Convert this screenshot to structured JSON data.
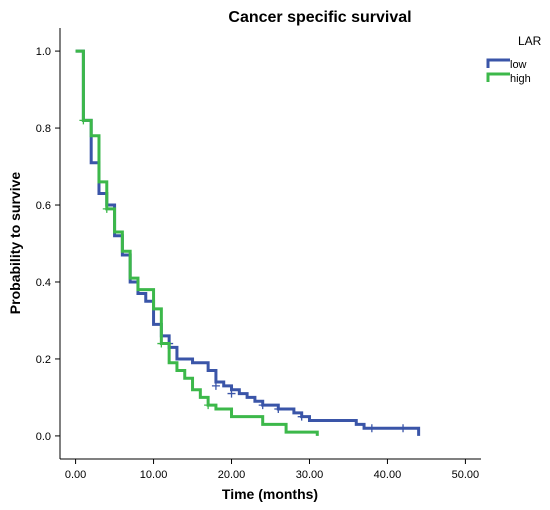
{
  "chart_data": {
    "type": "line",
    "subtype": "kaplan-meier step",
    "title": "Cancer specific survival",
    "xlabel": "Time (months)",
    "ylabel": "Probability to survive",
    "xlim": [
      -2,
      52
    ],
    "ylim": [
      -0.06,
      1.06
    ],
    "xticks": [
      0,
      10,
      20,
      30,
      40,
      50
    ],
    "xtick_labels": [
      "0.00",
      "10.00",
      "20.00",
      "30.00",
      "40.00",
      "50.00"
    ],
    "yticks": [
      0.0,
      0.2,
      0.4,
      0.6,
      0.8,
      1.0
    ],
    "ytick_labels": [
      "0.0",
      "0.2",
      "0.4",
      "0.6",
      "0.8",
      "1.0"
    ],
    "grid": false,
    "legend": {
      "title": "LAR",
      "position": "right"
    },
    "series": [
      {
        "name": "low",
        "color": "#3a55a8",
        "steps": [
          [
            0.0,
            1.0
          ],
          [
            1.0,
            0.82
          ],
          [
            2.0,
            0.71
          ],
          [
            3.0,
            0.63
          ],
          [
            4.0,
            0.6
          ],
          [
            5.0,
            0.52
          ],
          [
            6.0,
            0.47
          ],
          [
            7.0,
            0.4
          ],
          [
            8.0,
            0.37
          ],
          [
            9.0,
            0.35
          ],
          [
            10.0,
            0.29
          ],
          [
            11.0,
            0.26
          ],
          [
            12.0,
            0.23
          ],
          [
            13.0,
            0.2
          ],
          [
            15.0,
            0.19
          ],
          [
            17.0,
            0.17
          ],
          [
            18.0,
            0.14
          ],
          [
            19.0,
            0.13
          ],
          [
            20.0,
            0.12
          ],
          [
            21.0,
            0.11
          ],
          [
            22.0,
            0.1
          ],
          [
            23.0,
            0.09
          ],
          [
            24.0,
            0.08
          ],
          [
            26.0,
            0.07
          ],
          [
            28.0,
            0.06
          ],
          [
            29.0,
            0.05
          ],
          [
            30.0,
            0.04
          ],
          [
            33.0,
            0.04
          ],
          [
            36.0,
            0.03
          ],
          [
            37.0,
            0.02
          ],
          [
            44.0,
            0.0
          ]
        ],
        "end_x": 44.0,
        "censored": [
          [
            12.0,
            0.24
          ],
          [
            18.0,
            0.13
          ],
          [
            20.0,
            0.11
          ],
          [
            24.0,
            0.08
          ],
          [
            26.0,
            0.07
          ],
          [
            29.0,
            0.05
          ],
          [
            38.0,
            0.02
          ],
          [
            42.0,
            0.02
          ]
        ]
      },
      {
        "name": "high",
        "color": "#3cb84a",
        "steps": [
          [
            0.0,
            1.0
          ],
          [
            1.0,
            0.82
          ],
          [
            2.0,
            0.78
          ],
          [
            3.0,
            0.66
          ],
          [
            4.0,
            0.59
          ],
          [
            5.0,
            0.53
          ],
          [
            6.0,
            0.48
          ],
          [
            7.0,
            0.41
          ],
          [
            8.0,
            0.38
          ],
          [
            10.0,
            0.33
          ],
          [
            11.0,
            0.24
          ],
          [
            12.0,
            0.19
          ],
          [
            13.0,
            0.17
          ],
          [
            14.0,
            0.15
          ],
          [
            15.0,
            0.12
          ],
          [
            16.0,
            0.1
          ],
          [
            17.0,
            0.08
          ],
          [
            18.0,
            0.07
          ],
          [
            20.0,
            0.05
          ],
          [
            22.0,
            0.05
          ],
          [
            24.0,
            0.03
          ],
          [
            27.0,
            0.01
          ],
          [
            31.0,
            0.0
          ]
        ],
        "end_x": 31.0,
        "censored": [
          [
            1.0,
            0.82
          ],
          [
            4.0,
            0.59
          ],
          [
            11.0,
            0.24
          ],
          [
            17.0,
            0.08
          ]
        ]
      }
    ]
  }
}
